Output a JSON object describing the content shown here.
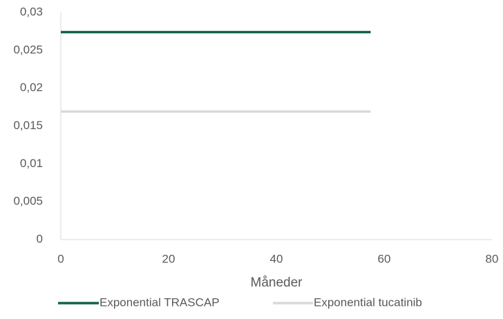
{
  "chart_data": {
    "type": "line",
    "x_label": "Måneder",
    "x": [
      0,
      57.5
    ],
    "series": [
      {
        "name": "Exponential TRASCAP",
        "color": "#12614c",
        "values": [
          0.0274,
          0.0274
        ]
      },
      {
        "name": "Exponential tucatinib",
        "color": "#d9d9d9",
        "values": [
          0.0169,
          0.0169
        ]
      }
    ],
    "xlim": [
      0,
      80
    ],
    "xticks": [
      0,
      20,
      40,
      60,
      80
    ],
    "ylim": [
      0,
      0.03
    ],
    "yticks": [
      0,
      {
        "value": 0.005,
        "label": "0,005"
      },
      {
        "value": 0.01,
        "label": "0,01"
      },
      {
        "value": 0.015,
        "label": "0,015"
      },
      {
        "value": 0.02,
        "label": "0,02"
      },
      {
        "value": 0.025,
        "label": "0,025"
      },
      {
        "value": 0.03,
        "label": "0,03"
      }
    ],
    "legend": "bottom"
  }
}
